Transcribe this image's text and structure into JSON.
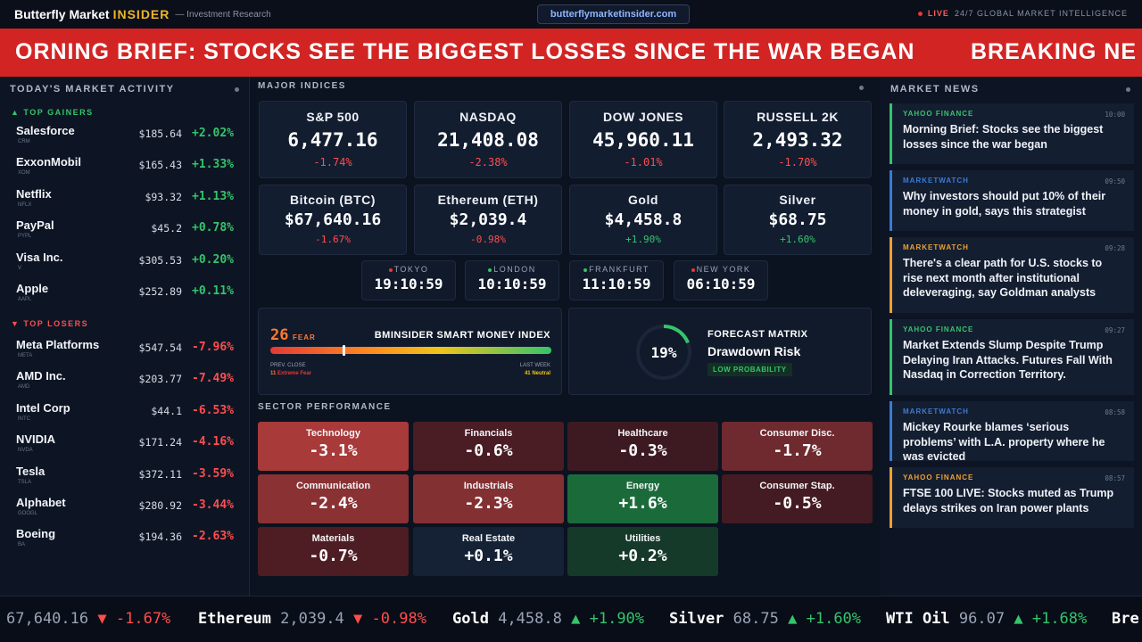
{
  "header": {
    "brand_name": "Butterfly Market",
    "brand_insider": "INSIDER",
    "tagline": "— Investment Research",
    "url": "butterflymarketinsider.com",
    "live_label": "LIVE",
    "live_tagline": "24/7 GLOBAL MARKET INTELLIGENCE"
  },
  "breaking": {
    "text": "ORNING BRIEF: STOCKS SEE THE BIGGEST LOSSES SINCE THE WAR BEGAN",
    "next_text": "BREAKING NE"
  },
  "market_activity": {
    "title": "TODAY'S MARKET ACTIVITY",
    "gainers_label": "▲ TOP GAINERS",
    "losers_label": "▼ TOP LOSERS",
    "gainers": [
      {
        "name": "Salesforce",
        "ticker": "CRM",
        "price": "$185.64",
        "change": "+2.02%"
      },
      {
        "name": "ExxonMobil",
        "ticker": "XOM",
        "price": "$165.43",
        "change": "+1.33%"
      },
      {
        "name": "Netflix",
        "ticker": "NFLX",
        "price": "$93.32",
        "change": "+1.13%"
      },
      {
        "name": "PayPal",
        "ticker": "PYPL",
        "price": "$45.2",
        "change": "+0.78%"
      },
      {
        "name": "Visa Inc.",
        "ticker": "V",
        "price": "$305.53",
        "change": "+0.20%"
      },
      {
        "name": "Apple",
        "ticker": "AAPL",
        "price": "$252.89",
        "change": "+0.11%"
      }
    ],
    "losers": [
      {
        "name": "Meta Platforms",
        "ticker": "META",
        "price": "$547.54",
        "change": "-7.96%"
      },
      {
        "name": "AMD Inc.",
        "ticker": "AMD",
        "price": "$203.77",
        "change": "-7.49%"
      },
      {
        "name": "Intel Corp",
        "ticker": "INTC",
        "price": "$44.1",
        "change": "-6.53%"
      },
      {
        "name": "NVIDIA",
        "ticker": "NVDA",
        "price": "$171.24",
        "change": "-4.16%"
      },
      {
        "name": "Tesla",
        "ticker": "TSLA",
        "price": "$372.11",
        "change": "-3.59%"
      },
      {
        "name": "Alphabet",
        "ticker": "GOOGL",
        "price": "$280.92",
        "change": "-3.44%"
      },
      {
        "name": "Boeing",
        "ticker": "BA",
        "price": "$194.36",
        "change": "-2.63%"
      }
    ]
  },
  "indices": {
    "title": "MAJOR INDICES",
    "majors": [
      {
        "name": "S&P 500",
        "value": "6,477.16",
        "change": "-1.74%"
      },
      {
        "name": "NASDAQ",
        "value": "21,408.08",
        "change": "-2.38%"
      },
      {
        "name": "DOW JONES",
        "value": "45,960.11",
        "change": "-1.01%"
      },
      {
        "name": "RUSSELL 2K",
        "value": "2,493.32",
        "change": "-1.70%"
      }
    ],
    "assets": [
      {
        "name": "Bitcoin (BTC)",
        "value": "$67,640.16",
        "change": "-1.67%"
      },
      {
        "name": "Ethereum (ETH)",
        "value": "$2,039.4",
        "change": "-0.98%"
      },
      {
        "name": "Gold",
        "value": "$4,458.8",
        "change": "+1.90%"
      },
      {
        "name": "Silver",
        "value": "$68.75",
        "change": "+1.60%"
      }
    ]
  },
  "clocks": [
    {
      "city": "TOKYO",
      "time": "19:10:59",
      "color": "#e53935"
    },
    {
      "city": "LONDON",
      "time": "10:10:59",
      "color": "#35c46b"
    },
    {
      "city": "FRANKFURT",
      "time": "11:10:59",
      "color": "#35c46b"
    },
    {
      "city": "NEW YORK",
      "time": "06:10:59",
      "color": "#e53935"
    }
  ],
  "smart_money": {
    "value": "26",
    "label": "FEAR",
    "title": "BMINSIDER SMART MONEY INDEX",
    "level": 0.26,
    "prev_label": "PREV. CLOSE",
    "prev_value": "11",
    "prev_desc": "Extreme Fear",
    "week_label": "LAST WEEK",
    "week_value": "41",
    "week_desc": "Neutral"
  },
  "forecast": {
    "percent": "19%",
    "level": 0.19,
    "title": "FORECAST MATRIX",
    "name": "Drawdown Risk",
    "badge": "LOW PROBABILITY"
  },
  "sectors": {
    "title": "SECTOR PERFORMANCE",
    "items": [
      {
        "name": "Technology",
        "value": "-3.1%",
        "color": "#a83a3a"
      },
      {
        "name": "Financials",
        "value": "-0.6%",
        "color": "#4a1c23"
      },
      {
        "name": "Healthcare",
        "value": "-0.3%",
        "color": "#3d1a22"
      },
      {
        "name": "Consumer Disc.",
        "value": "-1.7%",
        "color": "#6e2a2f"
      },
      {
        "name": "Communication",
        "value": "-2.4%",
        "color": "#8a3133"
      },
      {
        "name": "Industrials",
        "value": "-2.3%",
        "color": "#833033"
      },
      {
        "name": "Energy",
        "value": "+1.6%",
        "color": "#1b6b3a"
      },
      {
        "name": "Consumer Stap.",
        "value": "-0.5%",
        "color": "#441b22"
      },
      {
        "name": "Materials",
        "value": "-0.7%",
        "color": "#4e1d24"
      },
      {
        "name": "Real Estate",
        "value": "+0.1%",
        "color": "#152235"
      },
      {
        "name": "Utilities",
        "value": "+0.2%",
        "color": "#163a2a"
      }
    ]
  },
  "news": {
    "title": "MARKET NEWS",
    "items": [
      {
        "source": "YAHOO FINANCE",
        "time": "10:00",
        "headline": "Morning Brief: Stocks see the biggest losses since the war began",
        "color": "#35c46b"
      },
      {
        "source": "MARKETWATCH",
        "time": "09:50",
        "headline": "Why investors should put 10% of their money in gold, says this strategist",
        "color": "#3a7bd5"
      },
      {
        "source": "MARKETWATCH",
        "time": "09:28",
        "headline": "There's a clear path for U.S. stocks to rise next month after institutional deleveraging, say Goldman analysts",
        "color": "#f0a030"
      },
      {
        "source": "YAHOO FINANCE",
        "time": "09:27",
        "headline": "Market Extends Slump Despite Trump Delaying Iran Attacks. Futures Fall With Nasdaq in Correction Territory.",
        "color": "#35c46b"
      },
      {
        "source": "MARKETWATCH",
        "time": "08:58",
        "headline": "Mickey Rourke blames ‘serious problems’ with L.A. property where he was evicted",
        "color": "#3a7bd5"
      },
      {
        "source": "YAHOO FINANCE",
        "time": "08:57",
        "headline": "FTSE 100 LIVE: Stocks muted as Trump delays strikes on Iran power plants",
        "color": "#f0a030"
      }
    ]
  },
  "ticker": [
    {
      "name": "",
      "price": "67,640.16",
      "arrow": "▼",
      "change": "-1.67%"
    },
    {
      "name": "Ethereum",
      "price": "2,039.4",
      "arrow": "▼",
      "change": "-0.98%"
    },
    {
      "name": "Gold",
      "price": "4,458.8",
      "arrow": "▲",
      "change": "+1.90%"
    },
    {
      "name": "Silver",
      "price": "68.75",
      "arrow": "▲",
      "change": "+1.60%"
    },
    {
      "name": "WTI Oil",
      "price": "96.07",
      "arrow": "▲",
      "change": "+1.68%"
    },
    {
      "name": "Bre",
      "price": "",
      "arrow": "",
      "change": ""
    }
  ]
}
